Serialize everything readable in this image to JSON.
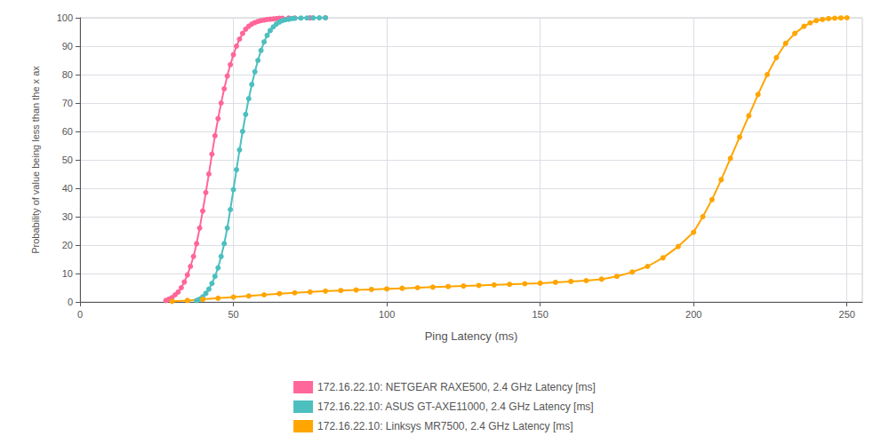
{
  "chart_data": {
    "type": "line",
    "xlabel": "Ping Latency (ms)",
    "ylabel": "Probability of value being less than the x ax",
    "xlim": [
      0,
      255
    ],
    "ylim": [
      0,
      100
    ],
    "xticks": [
      0,
      50,
      100,
      150,
      200,
      250
    ],
    "yticks": [
      0,
      10,
      20,
      30,
      40,
      50,
      60,
      70,
      80,
      90,
      100
    ],
    "grid": true,
    "legend": "bottom",
    "marker": "circle",
    "series": [
      {
        "name": "172.16.22.10: NETGEAR RAXE500, 2.4 GHz Latency [ms]",
        "color": "#FF6699",
        "x": [
          28,
          29,
          30,
          31,
          32,
          33,
          34,
          35,
          36,
          37,
          38,
          39,
          40,
          41,
          42,
          43,
          44,
          45,
          46,
          47,
          48,
          49,
          50,
          51,
          52,
          53,
          54,
          55,
          56,
          57,
          58,
          59,
          60,
          61,
          62,
          63,
          64,
          65,
          66,
          68,
          70,
          75,
          80
        ],
        "values": [
          0.5,
          1.0,
          1.5,
          2.5,
          3.5,
          5.0,
          7.0,
          9.5,
          12.5,
          16.0,
          20.5,
          26.0,
          32.0,
          38.5,
          45.0,
          52.0,
          58.5,
          64.5,
          70.0,
          75.0,
          79.5,
          83.5,
          87.0,
          90.0,
          92.5,
          94.5,
          96.0,
          97.0,
          97.8,
          98.3,
          98.7,
          99.0,
          99.2,
          99.4,
          99.5,
          99.6,
          99.7,
          99.8,
          99.85,
          99.9,
          99.93,
          99.97,
          100.0
        ]
      },
      {
        "name": "172.16.22.10: ASUS GT-AXE11000, 2.4 GHz Latency [ms]",
        "color": "#4DBFBF",
        "x": [
          38,
          39,
          40,
          41,
          42,
          43,
          44,
          45,
          46,
          47,
          48,
          49,
          50,
          51,
          52,
          53,
          54,
          55,
          56,
          57,
          58,
          59,
          60,
          61,
          62,
          63,
          64,
          65,
          66,
          67,
          68,
          69,
          70,
          72,
          74,
          76,
          78,
          80
        ],
        "values": [
          0.5,
          1.0,
          1.8,
          3.0,
          4.5,
          6.5,
          9.0,
          12.0,
          16.0,
          20.5,
          26.0,
          32.5,
          39.5,
          46.5,
          53.5,
          60.0,
          66.0,
          71.5,
          76.5,
          81.0,
          85.0,
          88.5,
          91.5,
          93.8,
          95.5,
          96.8,
          97.8,
          98.5,
          99.0,
          99.3,
          99.5,
          99.7,
          99.82,
          99.9,
          99.93,
          99.96,
          99.98,
          100.0
        ]
      },
      {
        "name": "172.16.22.10: Linksys MR7500, 2.4 GHz Latency [ms]",
        "color": "#FFA500",
        "x": [
          30,
          35,
          40,
          45,
          50,
          55,
          60,
          65,
          70,
          75,
          80,
          85,
          90,
          95,
          100,
          105,
          110,
          115,
          120,
          125,
          130,
          135,
          140,
          145,
          150,
          155,
          160,
          165,
          170,
          175,
          180,
          185,
          190,
          195,
          200,
          203,
          206,
          209,
          212,
          215,
          218,
          221,
          224,
          227,
          230,
          233,
          236,
          238,
          240,
          242,
          244,
          246,
          248,
          250
        ],
        "values": [
          0.2,
          0.5,
          0.9,
          1.3,
          1.7,
          2.1,
          2.5,
          2.9,
          3.2,
          3.5,
          3.8,
          4.0,
          4.2,
          4.4,
          4.6,
          4.8,
          5.0,
          5.2,
          5.4,
          5.6,
          5.8,
          6.0,
          6.2,
          6.4,
          6.6,
          6.9,
          7.2,
          7.5,
          8.0,
          9.0,
          10.5,
          12.5,
          15.5,
          19.5,
          24.5,
          30.0,
          36.0,
          43.0,
          50.5,
          58.0,
          65.5,
          73.0,
          80.0,
          86.0,
          91.0,
          94.5,
          97.0,
          98.2,
          99.0,
          99.4,
          99.7,
          99.85,
          99.95,
          100.0
        ]
      }
    ]
  }
}
